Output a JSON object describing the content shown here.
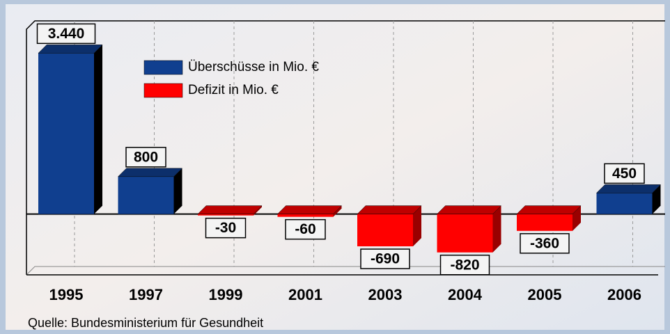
{
  "chart_data": {
    "type": "bar",
    "categories": [
      "1995",
      "1997",
      "1999",
      "2001",
      "2003",
      "2004",
      "2005",
      "2006"
    ],
    "series": [
      {
        "name": "Überschüsse in Mio. €",
        "color": "#103f8f",
        "values": [
          3440,
          800,
          null,
          null,
          null,
          null,
          null,
          450
        ],
        "value_labels": [
          "3.440",
          "800",
          null,
          null,
          null,
          null,
          null,
          "450"
        ]
      },
      {
        "name": "Defizit in Mio. €",
        "color": "#ff0000",
        "values": [
          null,
          null,
          -30,
          -60,
          -690,
          -820,
          -360,
          null
        ],
        "value_labels": [
          null,
          null,
          "-30",
          "-60",
          "-690",
          "-820",
          "-360",
          null
        ]
      }
    ],
    "ylim": [
      -1300,
      4130
    ],
    "source": "Quelle: Bundesministerium für Gesundheit"
  }
}
